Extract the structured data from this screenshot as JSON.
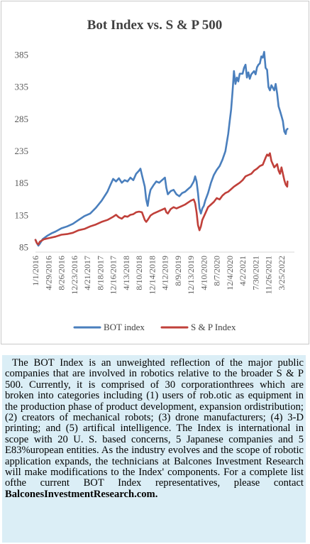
{
  "chart_data": {
    "type": "line",
    "title": "Bot Index vs. S & P 500",
    "y_ticks": [
      85,
      135,
      185,
      235,
      285,
      335,
      385
    ],
    "ylim": [
      85,
      400
    ],
    "x_tick_labels": [
      "1/1/2016",
      "4/29/2016",
      "8/26/2016",
      "12/23/2016",
      "4/21/2017",
      "8/18/2017",
      "12/16/2017",
      "4/13/2018",
      "8/10/2018",
      "12/14/2018",
      "4/12/2019",
      "8/9/2019",
      "12/13/2019",
      "4/10/2020",
      "8/7/2020",
      "12/4/2020",
      "4/2/2021",
      "7/30/2021",
      "11/26/2021",
      "3/25/2022"
    ],
    "x_tick_positions": [
      0,
      0.45,
      0.9,
      1.35,
      1.8,
      2.25,
      2.7,
      3.15,
      3.6,
      4.05,
      4.5,
      4.95,
      5.4,
      5.85,
      6.3,
      6.75,
      7.2,
      7.65,
      8.1,
      8.55
    ],
    "x_range": [
      0,
      9.0
    ],
    "grid": false,
    "legend_position": "bottom",
    "series": [
      {
        "name": "BOT index",
        "color": "#4a7fbd",
        "points": [
          [
            0,
            97
          ],
          [
            0.05,
            92
          ],
          [
            0.1,
            88
          ],
          [
            0.15,
            91
          ],
          [
            0.25,
            98
          ],
          [
            0.4,
            103
          ],
          [
            0.55,
            107
          ],
          [
            0.7,
            110
          ],
          [
            0.9,
            115
          ],
          [
            1.1,
            118
          ],
          [
            1.3,
            122
          ],
          [
            1.5,
            128
          ],
          [
            1.7,
            134
          ],
          [
            1.9,
            138
          ],
          [
            2.1,
            147
          ],
          [
            2.3,
            158
          ],
          [
            2.5,
            172
          ],
          [
            2.6,
            182
          ],
          [
            2.7,
            192
          ],
          [
            2.8,
            188
          ],
          [
            2.9,
            193
          ],
          [
            3.0,
            186
          ],
          [
            3.1,
            190
          ],
          [
            3.2,
            188
          ],
          [
            3.3,
            194
          ],
          [
            3.4,
            190
          ],
          [
            3.5,
            200
          ],
          [
            3.6,
            205
          ],
          [
            3.65,
            208
          ],
          [
            3.7,
            198
          ],
          [
            3.8,
            180
          ],
          [
            3.85,
            160
          ],
          [
            3.9,
            150
          ],
          [
            3.95,
            165
          ],
          [
            4.0,
            175
          ],
          [
            4.1,
            182
          ],
          [
            4.2,
            188
          ],
          [
            4.3,
            186
          ],
          [
            4.4,
            190
          ],
          [
            4.5,
            194
          ],
          [
            4.55,
            178
          ],
          [
            4.6,
            168
          ],
          [
            4.7,
            173
          ],
          [
            4.8,
            175
          ],
          [
            4.9,
            168
          ],
          [
            5.0,
            165
          ],
          [
            5.1,
            170
          ],
          [
            5.2,
            172
          ],
          [
            5.3,
            176
          ],
          [
            5.4,
            180
          ],
          [
            5.5,
            188
          ],
          [
            5.55,
            196
          ],
          [
            5.6,
            188
          ],
          [
            5.65,
            170
          ],
          [
            5.7,
            146
          ],
          [
            5.75,
            138
          ],
          [
            5.8,
            146
          ],
          [
            5.85,
            150
          ],
          [
            5.9,
            158
          ],
          [
            6.0,
            170
          ],
          [
            6.1,
            186
          ],
          [
            6.2,
            198
          ],
          [
            6.3,
            206
          ],
          [
            6.4,
            212
          ],
          [
            6.5,
            222
          ],
          [
            6.6,
            235
          ],
          [
            6.7,
            262
          ],
          [
            6.75,
            282
          ],
          [
            6.8,
            300
          ],
          [
            6.85,
            328
          ],
          [
            6.9,
            360
          ],
          [
            6.95,
            340
          ],
          [
            7.0,
            350
          ],
          [
            7.05,
            344
          ],
          [
            7.1,
            356
          ],
          [
            7.2,
            356
          ],
          [
            7.25,
            365
          ],
          [
            7.3,
            370
          ],
          [
            7.35,
            350
          ],
          [
            7.4,
            358
          ],
          [
            7.45,
            348
          ],
          [
            7.5,
            355
          ],
          [
            7.6,
            360
          ],
          [
            7.65,
            355
          ],
          [
            7.7,
            366
          ],
          [
            7.75,
            370
          ],
          [
            7.8,
            372
          ],
          [
            7.85,
            383
          ],
          [
            7.9,
            381
          ],
          [
            7.95,
            390
          ],
          [
            8.0,
            365
          ],
          [
            8.05,
            362
          ],
          [
            8.1,
            335
          ],
          [
            8.15,
            330
          ],
          [
            8.2,
            338
          ],
          [
            8.3,
            330
          ],
          [
            8.35,
            340
          ],
          [
            8.4,
            325
          ],
          [
            8.45,
            305
          ],
          [
            8.5,
            298
          ],
          [
            8.55,
            290
          ],
          [
            8.6,
            282
          ],
          [
            8.62,
            275
          ],
          [
            8.65,
            266
          ],
          [
            8.7,
            262
          ],
          [
            8.72,
            268
          ],
          [
            8.76,
            270
          ]
        ]
      },
      {
        "name": "S & P Index",
        "color": "#c0403a",
        "points": [
          [
            0,
            97
          ],
          [
            0.05,
            92
          ],
          [
            0.1,
            90
          ],
          [
            0.15,
            94
          ],
          [
            0.3,
            98
          ],
          [
            0.5,
            100
          ],
          [
            0.7,
            102
          ],
          [
            0.9,
            105
          ],
          [
            1.1,
            106
          ],
          [
            1.3,
            108
          ],
          [
            1.5,
            112
          ],
          [
            1.7,
            114
          ],
          [
            1.9,
            118
          ],
          [
            2.1,
            121
          ],
          [
            2.3,
            125
          ],
          [
            2.5,
            128
          ],
          [
            2.7,
            133
          ],
          [
            2.8,
            136
          ],
          [
            2.9,
            132
          ],
          [
            3.0,
            130
          ],
          [
            3.1,
            134
          ],
          [
            3.2,
            133
          ],
          [
            3.3,
            136
          ],
          [
            3.4,
            137
          ],
          [
            3.5,
            140
          ],
          [
            3.6,
            141
          ],
          [
            3.7,
            140
          ],
          [
            3.8,
            128
          ],
          [
            3.85,
            125
          ],
          [
            3.9,
            128
          ],
          [
            4.0,
            135
          ],
          [
            4.1,
            138
          ],
          [
            4.2,
            140
          ],
          [
            4.3,
            142
          ],
          [
            4.4,
            144
          ],
          [
            4.5,
            146
          ],
          [
            4.55,
            140
          ],
          [
            4.6,
            138
          ],
          [
            4.7,
            145
          ],
          [
            4.8,
            148
          ],
          [
            4.9,
            146
          ],
          [
            5.0,
            148
          ],
          [
            5.1,
            150
          ],
          [
            5.2,
            152
          ],
          [
            5.3,
            155
          ],
          [
            5.4,
            158
          ],
          [
            5.5,
            160
          ],
          [
            5.55,
            154
          ],
          [
            5.6,
            140
          ],
          [
            5.65,
            120
          ],
          [
            5.7,
            112
          ],
          [
            5.75,
            118
          ],
          [
            5.8,
            128
          ],
          [
            5.9,
            138
          ],
          [
            6.0,
            148
          ],
          [
            6.1,
            152
          ],
          [
            6.2,
            156
          ],
          [
            6.3,
            162
          ],
          [
            6.4,
            160
          ],
          [
            6.5,
            166
          ],
          [
            6.6,
            170
          ],
          [
            6.7,
            172
          ],
          [
            6.8,
            176
          ],
          [
            6.9,
            180
          ],
          [
            7.0,
            183
          ],
          [
            7.1,
            186
          ],
          [
            7.2,
            190
          ],
          [
            7.3,
            196
          ],
          [
            7.4,
            198
          ],
          [
            7.5,
            200
          ],
          [
            7.6,
            205
          ],
          [
            7.7,
            208
          ],
          [
            7.8,
            212
          ],
          [
            7.9,
            214
          ],
          [
            8.0,
            225
          ],
          [
            8.05,
            230
          ],
          [
            8.1,
            228
          ],
          [
            8.15,
            232
          ],
          [
            8.2,
            220
          ],
          [
            8.3,
            210
          ],
          [
            8.4,
            215
          ],
          [
            8.45,
            205
          ],
          [
            8.5,
            200
          ],
          [
            8.55,
            210
          ],
          [
            8.6,
            200
          ],
          [
            8.65,
            190
          ],
          [
            8.7,
            183
          ],
          [
            8.75,
            180
          ],
          [
            8.76,
            188
          ]
        ]
      }
    ]
  },
  "caption": {
    "text": "The BOT Index is an unweighted reflection of the major public companies that are involved in robotics relative to the broader S & P 500. Currently, it is comprised of 30 corporationthrees which are broken into categories including (1) users of rob.otic as equipment in the production phase of product development, expansion ordistribution; (2) creators of mechanical robots; (3) drone manufacturers; (4) 3-D printing; and (5) artifical intelligence. The Index is international in scope with 20 U. S. based concerns, 5 Japanese companies and 5 E83%uropean entities. As the industry evolves and the scope of robotic application expands, the technicians at Balcones Investment Research will make modifications to the Index' components. For a  complete list ofthe current BOT Index representatives, please contact",
    "strong": "BalconesInvestmentResearch.com."
  }
}
